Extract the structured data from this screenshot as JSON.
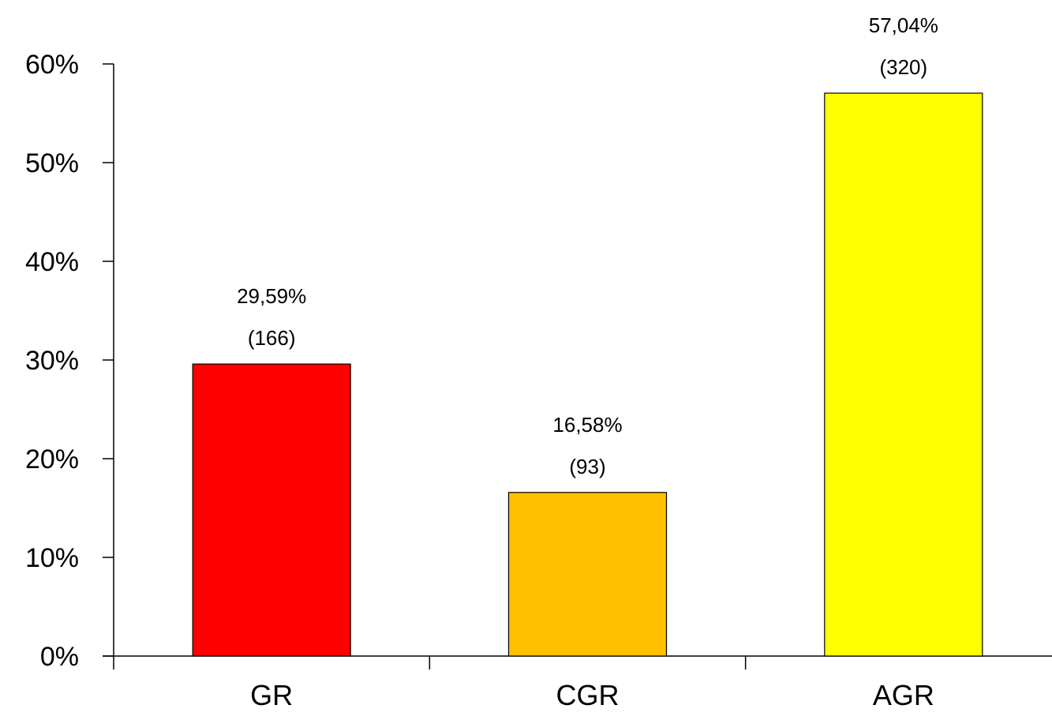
{
  "chart_data": {
    "type": "bar",
    "categories": [
      "GR",
      "CGR",
      "AGR"
    ],
    "values": [
      29.59,
      16.58,
      57.04
    ],
    "counts": [
      166,
      93,
      320
    ],
    "value_labels": [
      "29,59%",
      "16,58%",
      "57,04%"
    ],
    "count_labels": [
      "(166)",
      "(93)",
      "(320)"
    ],
    "colors": [
      "#ff0000",
      "#ffc000",
      "#ffff00"
    ],
    "title": "",
    "xlabel": "",
    "ylabel": "",
    "ylim": [
      0,
      60
    ],
    "yticks": [
      0,
      10,
      20,
      30,
      40,
      50,
      60
    ],
    "ytick_labels": [
      "0%",
      "10%",
      "20%",
      "30%",
      "40%",
      "50%",
      "60%"
    ],
    "grid": false,
    "legend": "none"
  }
}
